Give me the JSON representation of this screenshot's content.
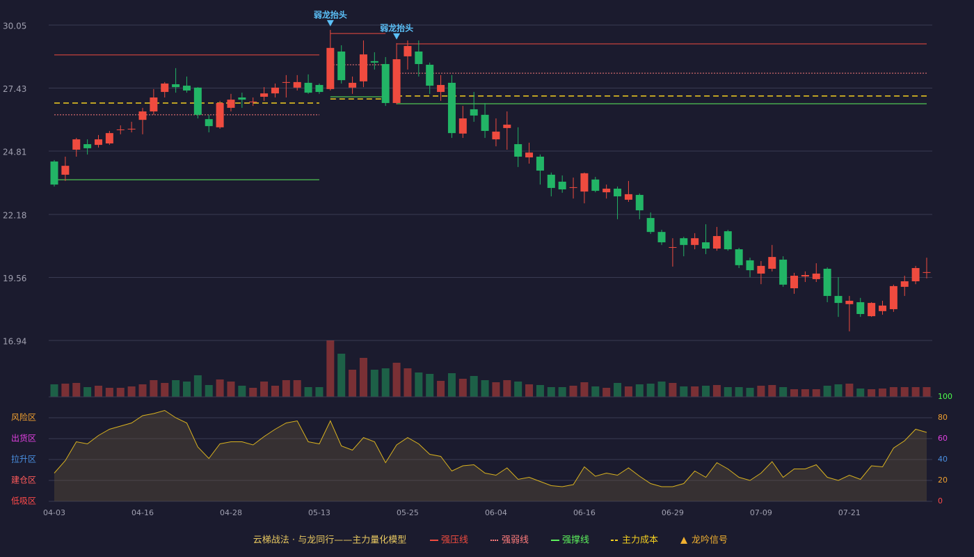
{
  "chart_data": {
    "type": "candlestick",
    "title": "云梯战法 · 与龙同行——主力量化模型",
    "categories": [
      "04-03",
      null,
      null,
      null,
      null,
      null,
      null,
      null,
      "04-16",
      null,
      null,
      null,
      null,
      null,
      null,
      null,
      "04-28",
      null,
      null,
      null,
      null,
      null,
      null,
      null,
      "05-13",
      null,
      null,
      null,
      null,
      null,
      null,
      null,
      "05-25",
      null,
      null,
      null,
      null,
      null,
      null,
      null,
      "06-04",
      null,
      null,
      null,
      null,
      null,
      null,
      null,
      "06-16",
      null,
      null,
      null,
      null,
      null,
      null,
      null,
      "06-29",
      null,
      null,
      null,
      null,
      null,
      null,
      null,
      "07-09",
      null,
      null,
      null,
      null,
      null,
      null,
      null,
      "07-21",
      null,
      null,
      null,
      null,
      null,
      null,
      null
    ],
    "ylim": [
      16.94,
      30.05
    ],
    "yticks": [
      30.05,
      27.43,
      24.81,
      22.18,
      19.56,
      16.94
    ],
    "grid": true,
    "up_color": "#ef4b3f",
    "down_color": "#22b566",
    "ohlc": [
      [
        24.38,
        24.44,
        23.34,
        23.42
      ],
      [
        23.83,
        24.58,
        23.57,
        24.2
      ],
      [
        24.87,
        25.36,
        24.58,
        25.3
      ],
      [
        25.1,
        25.3,
        24.67,
        24.93
      ],
      [
        25.07,
        25.48,
        24.96,
        25.3
      ],
      [
        25.13,
        25.65,
        25.07,
        25.56
      ],
      [
        25.68,
        25.88,
        25.51,
        25.71
      ],
      [
        25.71,
        26.03,
        25.59,
        25.74
      ],
      [
        26.11,
        26.61,
        25.51,
        26.46
      ],
      [
        26.46,
        27.39,
        26.32,
        27.04
      ],
      [
        27.27,
        27.68,
        27.04,
        27.62
      ],
      [
        27.59,
        28.26,
        27.24,
        27.47
      ],
      [
        27.53,
        27.91,
        27.24,
        27.33
      ],
      [
        27.45,
        27.47,
        26.17,
        26.32
      ],
      [
        26.14,
        26.32,
        25.59,
        25.85
      ],
      [
        25.8,
        26.9,
        25.74,
        26.81
      ],
      [
        26.61,
        27.19,
        26.46,
        26.95
      ],
      [
        27.04,
        27.24,
        26.61,
        26.95
      ],
      [
        26.84,
        27.04,
        26.69,
        26.87
      ],
      [
        27.07,
        27.47,
        26.9,
        27.21
      ],
      [
        27.21,
        27.62,
        27.04,
        27.45
      ],
      [
        27.65,
        27.97,
        27.04,
        27.68
      ],
      [
        27.45,
        27.97,
        27.33,
        27.68
      ],
      [
        27.65,
        28.0,
        27.19,
        27.24
      ],
      [
        27.56,
        27.62,
        27.19,
        27.27
      ],
      [
        27.39,
        29.85,
        27.33,
        29.1
      ],
      [
        28.95,
        29.21,
        27.62,
        27.76
      ],
      [
        27.45,
        27.91,
        27.19,
        27.65
      ],
      [
        27.71,
        29.41,
        27.47,
        28.83
      ],
      [
        28.55,
        28.92,
        28.2,
        28.49
      ],
      [
        28.43,
        28.72,
        26.69,
        26.81
      ],
      [
        26.81,
        29.3,
        26.75,
        28.63
      ],
      [
        28.75,
        29.41,
        28.2,
        29.18
      ],
      [
        28.95,
        29.41,
        27.91,
        28.43
      ],
      [
        28.4,
        28.49,
        27.19,
        27.53
      ],
      [
        27.27,
        27.97,
        26.9,
        27.56
      ],
      [
        27.65,
        27.97,
        25.36,
        25.56
      ],
      [
        25.54,
        26.69,
        25.36,
        26.17
      ],
      [
        26.55,
        27.27,
        26.03,
        26.29
      ],
      [
        26.32,
        26.81,
        25.36,
        25.65
      ],
      [
        25.3,
        26.17,
        25.01,
        25.62
      ],
      [
        25.77,
        26.46,
        24.87,
        25.91
      ],
      [
        25.1,
        25.8,
        24.15,
        24.58
      ],
      [
        24.55,
        25.16,
        24.29,
        24.75
      ],
      [
        24.58,
        24.67,
        23.42,
        24.0
      ],
      [
        23.83,
        23.92,
        22.93,
        23.28
      ],
      [
        23.54,
        23.8,
        23.08,
        23.22
      ],
      [
        23.28,
        23.71,
        22.84,
        23.31
      ],
      [
        23.13,
        23.92,
        22.64,
        23.89
      ],
      [
        23.63,
        23.74,
        23.1,
        23.16
      ],
      [
        23.1,
        23.42,
        22.84,
        23.25
      ],
      [
        23.25,
        23.34,
        21.98,
        22.93
      ],
      [
        22.79,
        23.57,
        22.7,
        23.02
      ],
      [
        22.99,
        23.05,
        21.98,
        22.35
      ],
      [
        22.03,
        22.26,
        21.37,
        21.45
      ],
      [
        21.45,
        21.54,
        20.91,
        21.02
      ],
      [
        20.79,
        21.19,
        20.01,
        20.82
      ],
      [
        21.19,
        21.25,
        20.44,
        20.91
      ],
      [
        20.91,
        21.4,
        20.73,
        21.19
      ],
      [
        21.02,
        21.77,
        20.53,
        20.76
      ],
      [
        20.76,
        21.66,
        20.67,
        21.28
      ],
      [
        21.48,
        21.54,
        20.67,
        20.73
      ],
      [
        20.73,
        20.79,
        19.95,
        20.07
      ],
      [
        20.27,
        20.38,
        19.57,
        19.86
      ],
      [
        19.72,
        20.24,
        19.28,
        20.04
      ],
      [
        19.92,
        20.91,
        19.81,
        20.41
      ],
      [
        20.3,
        20.44,
        19.17,
        19.26
      ],
      [
        19.11,
        19.75,
        18.88,
        19.63
      ],
      [
        19.6,
        19.81,
        19.37,
        19.66
      ],
      [
        19.49,
        20.15,
        19.37,
        19.72
      ],
      [
        19.92,
        19.98,
        18.53,
        18.79
      ],
      [
        18.79,
        19.57,
        17.92,
        18.5
      ],
      [
        18.45,
        18.79,
        17.32,
        18.59
      ],
      [
        18.53,
        18.71,
        17.92,
        18.04
      ],
      [
        17.95,
        18.53,
        17.92,
        18.5
      ],
      [
        18.16,
        18.59,
        18.01,
        18.39
      ],
      [
        18.24,
        19.26,
        18.13,
        19.2
      ],
      [
        19.17,
        19.63,
        18.79,
        19.4
      ],
      [
        19.4,
        20.04,
        19.28,
        19.95
      ],
      [
        19.75,
        20.38,
        19.52,
        19.78
      ]
    ],
    "volume": [
      18,
      19,
      20,
      14,
      16,
      13,
      13,
      15,
      18,
      24,
      20,
      24,
      22,
      31,
      17,
      25,
      22,
      16,
      13,
      22,
      16,
      24,
      24,
      14,
      14,
      81,
      62,
      39,
      56,
      39,
      41,
      49,
      41,
      35,
      33,
      23,
      34,
      26,
      30,
      24,
      21,
      24,
      22,
      18,
      17,
      14,
      14,
      16,
      21,
      15,
      13,
      20,
      15,
      18,
      19,
      22,
      20,
      15,
      15,
      16,
      17,
      14,
      14,
      13,
      16,
      17,
      14,
      11,
      11,
      11,
      16,
      18,
      19,
      12,
      11,
      12,
      14,
      14,
      14,
      14
    ],
    "level_spans": [
      [
        0,
        24
      ],
      [
        25,
        30
      ],
      [
        31,
        79
      ]
    ],
    "lines": [
      {
        "name": "强压线",
        "color": "#ef4b3f",
        "style": "solid",
        "values": [
          28.81,
          29.7,
          29.27
        ]
      },
      {
        "name": "强弱线",
        "color": "#ff7c7c",
        "style": "dotted",
        "values": [
          26.32,
          28.4,
          28.05
        ]
      },
      {
        "name": "强撑线",
        "color": "#5cf05c",
        "style": "solid",
        "values": [
          23.62,
          27.07,
          26.78
        ]
      },
      {
        "name": "主力成本",
        "color": "#f5d020",
        "style": "dashed",
        "values": [
          26.81,
          26.98,
          27.1
        ]
      }
    ],
    "signals": {
      "name": "龙吟信号",
      "legend_color": "#f0b030",
      "color": "#5bc0f8",
      "points": [
        {
          "index": 25,
          "label": "弱龙抬头"
        },
        {
          "index": 31,
          "label": "弱龙抬头"
        }
      ]
    },
    "indicator": {
      "color": "#d9b21f",
      "values": [
        27,
        39,
        57,
        55,
        63,
        69,
        72,
        75,
        82,
        84,
        87,
        80,
        75,
        52,
        41,
        55,
        57,
        57,
        54,
        62,
        69,
        75,
        77,
        57,
        55,
        77,
        53,
        49,
        61,
        57,
        37,
        54,
        61,
        55,
        45,
        43,
        29,
        34,
        35,
        27,
        25,
        32,
        21,
        23,
        19,
        15,
        14,
        16,
        33,
        24,
        27,
        25,
        32,
        24,
        17,
        14,
        14,
        17,
        29,
        23,
        37,
        31,
        23,
        20,
        27,
        38,
        23,
        31,
        31,
        35,
        23,
        20,
        25,
        21,
        34,
        33,
        51,
        58,
        69,
        66
      ],
      "ylim": [
        0,
        100
      ],
      "yticks": [
        0,
        20,
        40,
        60,
        80,
        100
      ],
      "ytick_colors": [
        "#ff4a4a",
        "#f0a030",
        "#4a90e2",
        "#e040e0",
        "#f0a030",
        "#4cff4c"
      ],
      "zones": [
        {
          "value": 80,
          "label": "风险区",
          "color": "#f0a030"
        },
        {
          "value": 60,
          "label": "出货区",
          "color": "#e040e0"
        },
        {
          "value": 40,
          "label": "拉升区",
          "color": "#4a90e2"
        },
        {
          "value": 20,
          "label": "建仓区",
          "color": "#ff5a5a"
        },
        {
          "value": 0,
          "label": "低吸区",
          "color": "#ff4a4a"
        }
      ]
    }
  }
}
